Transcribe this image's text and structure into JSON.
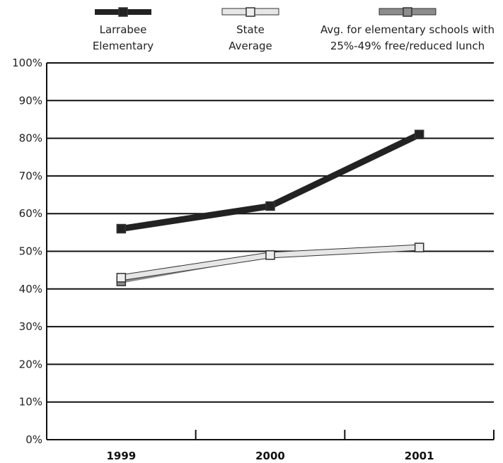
{
  "chart_data": {
    "type": "line",
    "categories": [
      "1999",
      "2000",
      "2001"
    ],
    "ylim": [
      0,
      100
    ],
    "yticks": [
      "0%",
      "10%",
      "20%",
      "30%",
      "40%",
      "50%",
      "60%",
      "70%",
      "80%",
      "90%",
      "100%"
    ],
    "grid": true,
    "legend_position": "top",
    "series": [
      {
        "name_lines": [
          "Larrabee",
          "Elementary"
        ],
        "values": [
          56,
          62,
          81
        ],
        "line_color": "#222222",
        "marker_fill": "#222222"
      },
      {
        "name_lines": [
          "State",
          "Average"
        ],
        "values": [
          43,
          49,
          51
        ],
        "line_color": "#e6e6e6",
        "marker_fill": "#eeeeee"
      },
      {
        "name_lines": [
          "Avg. for elementary schools with",
          "25%-49% free/reduced lunch"
        ],
        "values": [
          42,
          49,
          51
        ],
        "line_color": "#8c8c8c",
        "marker_fill": "#8c8c8c"
      }
    ]
  }
}
